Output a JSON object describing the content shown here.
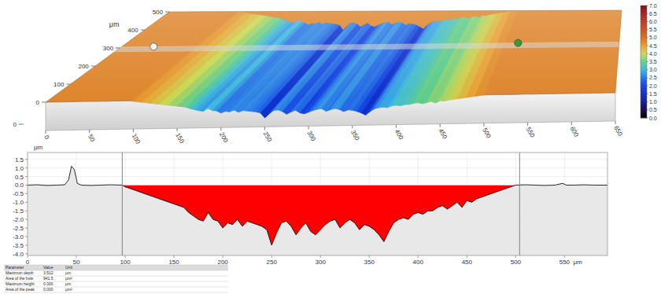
{
  "chart_data": {
    "type": "area",
    "x_label": "μm",
    "y_label": "μm",
    "color": "#ff0000",
    "grid": true,
    "x": [
      0,
      10,
      20,
      30,
      38,
      42,
      45,
      48,
      51,
      55,
      65,
      75,
      85,
      97,
      100,
      110,
      120,
      130,
      140,
      150,
      160,
      165,
      170,
      175,
      180,
      185,
      190,
      195,
      200,
      205,
      210,
      215,
      220,
      225,
      230,
      235,
      240,
      245,
      250,
      255,
      260,
      265,
      270,
      275,
      280,
      285,
      290,
      295,
      300,
      305,
      310,
      315,
      320,
      325,
      330,
      335,
      340,
      345,
      350,
      355,
      360,
      365,
      370,
      375,
      380,
      385,
      390,
      395,
      400,
      405,
      410,
      415,
      420,
      425,
      430,
      435,
      440,
      445,
      450,
      455,
      460,
      470,
      480,
      490,
      500,
      510,
      520,
      530,
      540,
      548,
      552,
      560,
      570,
      580,
      594
    ],
    "values": [
      0,
      0.02,
      -0.02,
      0,
      0.02,
      0.3,
      1.1,
      0.9,
      0.1,
      0,
      -0.02,
      0,
      0.02,
      0,
      -0.1,
      -0.3,
      -0.5,
      -0.7,
      -0.9,
      -1.1,
      -1.3,
      -1.6,
      -1.8,
      -2.0,
      -2.1,
      -1.6,
      -2.0,
      -2.1,
      -2.5,
      -2.2,
      -2.3,
      -2.0,
      -2.4,
      -2.1,
      -2.2,
      -2.3,
      -2.4,
      -2.6,
      -3.5,
      -2.8,
      -2.2,
      -2.1,
      -2.4,
      -2.9,
      -2.5,
      -2.2,
      -2.7,
      -2.9,
      -2.6,
      -2.3,
      -2.1,
      -2.0,
      -2.5,
      -2.2,
      -2.0,
      -2.2,
      -2.6,
      -2.3,
      -2.4,
      -2.6,
      -2.9,
      -3.3,
      -2.7,
      -2.2,
      -2.0,
      -1.9,
      -2.0,
      -1.7,
      -1.6,
      -1.7,
      -1.5,
      -1.5,
      -1.3,
      -1.2,
      -1.4,
      -1.2,
      -1.0,
      -1.3,
      -0.9,
      -1.0,
      -0.8,
      -0.6,
      -0.4,
      -0.2,
      0,
      0.02,
      0,
      -0.02,
      0,
      0.1,
      0,
      0,
      0.02,
      0,
      0
    ],
    "hole_x": [
      97,
      504
    ],
    "xlim": [
      0,
      594
    ],
    "ylim": [
      -4.1,
      1.9
    ],
    "xticks": [
      0,
      50,
      100,
      150,
      200,
      250,
      300,
      350,
      400,
      450,
      500,
      550
    ],
    "yticks": [
      1.5,
      {
        "value": 1,
        "label": "1.0"
      },
      0.5,
      {
        "value": 0,
        "label": "0.0"
      },
      -0.5,
      {
        "value": -1,
        "label": "-1.0"
      },
      -1.5,
      {
        "value": -2,
        "label": "-2.0"
      },
      -2.5,
      {
        "value": -3,
        "label": "-3.0"
      },
      -3.5,
      {
        "value": -4,
        "label": "-4.0"
      }
    ]
  },
  "surface_map": {
    "y_label": "μm",
    "xlim": [
      0,
      650
    ],
    "ylim": [
      0,
      500
    ],
    "xticks": [
      0,
      50,
      100,
      150,
      200,
      250,
      300,
      350,
      400,
      450,
      500,
      550,
      600,
      650
    ],
    "yticks": [
      0,
      100,
      200,
      300,
      400,
      500
    ],
    "zticks": [
      0
    ],
    "surface_height": 4.8,
    "profile_y": 280,
    "profile_x": [
      50,
      520
    ],
    "colorbar": {
      "range": [
        0,
        7
      ],
      "ticks": [
        {
          "value": 0,
          "label": "0.0"
        },
        0.5,
        {
          "value": 1,
          "label": "1.0"
        },
        1.5,
        {
          "value": 2,
          "label": "2.0"
        },
        2.5,
        {
          "value": 3,
          "label": "3.0"
        },
        3.5,
        {
          "value": 4,
          "label": "4.0"
        },
        4.5,
        {
          "value": 5,
          "label": "5.0"
        },
        5.5,
        {
          "value": 6,
          "label": "6.0"
        },
        6.5,
        {
          "value": 7,
          "label": "7.0"
        }
      ]
    }
  },
  "table": {
    "columns": [
      "Parameter",
      "Value",
      "Unit"
    ],
    "rows": [
      [
        "Maximum depth",
        "3.512",
        "μm"
      ],
      [
        "Area of the hole",
        "941.5",
        "μm²"
      ],
      [
        "Maximum height",
        "0.000",
        "μm"
      ],
      [
        "Area of the peak",
        "0.000",
        "μm²"
      ]
    ]
  }
}
